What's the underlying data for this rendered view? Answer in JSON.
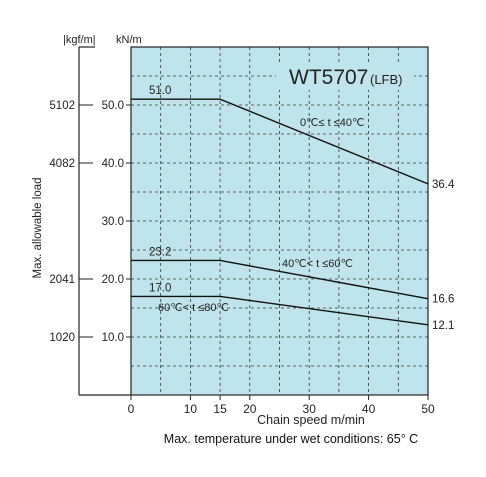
{
  "chart_data": {
    "type": "line",
    "title": "WT5707",
    "title_suffix": "(LFB)",
    "xlabel": "Chain speed  m/min",
    "ylabel": "Max. allowable load",
    "y_unit_left": "|kgf/m|",
    "y_unit_right": "kN/m",
    "xlim": [
      0,
      50
    ],
    "ylim": [
      0,
      60
    ],
    "x_ticks": [
      "0",
      "10",
      "15",
      "20",
      "30",
      "40",
      "50"
    ],
    "x_tick_values": [
      0,
      10,
      15,
      20,
      30,
      40,
      50
    ],
    "y_ticks_kn": [
      "10.0",
      "20.0",
      "30.0",
      "40.0",
      "50.0"
    ],
    "y_tick_kn_values": [
      10,
      20,
      30,
      40,
      50
    ],
    "y_ticks_kgf": [
      "1020",
      "2041",
      "4082",
      "5102"
    ],
    "y_tick_kgf_values": [
      10,
      20,
      40,
      50
    ],
    "grid": true,
    "background": "#bfe4ee",
    "series": [
      {
        "name": "0℃≤ t ≤40℃",
        "x": [
          0,
          15,
          50
        ],
        "y": [
          51.0,
          51.0,
          36.4
        ],
        "start_label": "51.0",
        "end_label": "36.4"
      },
      {
        "name": "40℃< t ≤60℃",
        "x": [
          0,
          15,
          50
        ],
        "y": [
          23.2,
          23.2,
          16.6
        ],
        "start_label": "23.2",
        "end_label": "16.6"
      },
      {
        "name": "60℃< t ≤80℃",
        "x": [
          0,
          15,
          50
        ],
        "y": [
          17.0,
          17.0,
          12.1
        ],
        "start_label": "17.0",
        "end_label": "12.1"
      }
    ]
  },
  "footnote": "Max. temperature under wet conditions: 65° C"
}
